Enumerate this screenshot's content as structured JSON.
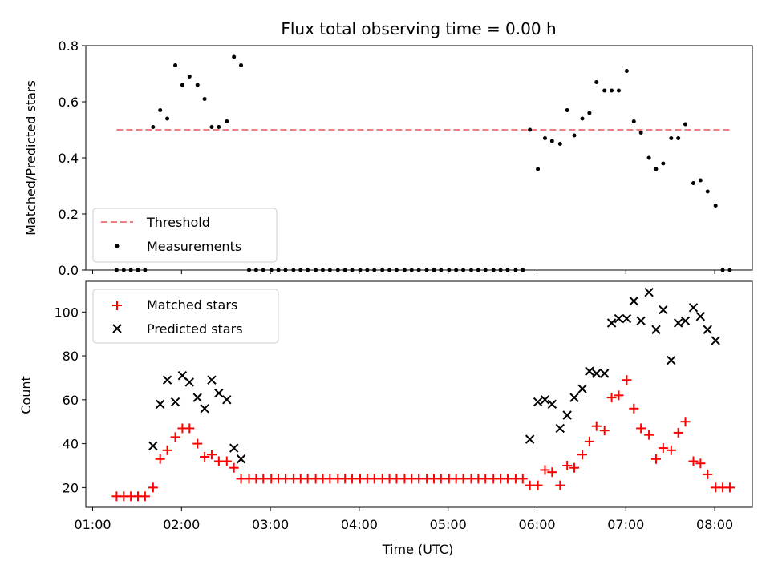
{
  "title": "Flux total observing time = 0.00 h",
  "chart_data": [
    {
      "type": "scatter",
      "ylabel": "Matched/Predicted stars",
      "xlabel": "",
      "ylim": [
        0,
        0.8
      ],
      "y_ticks": [
        "0.0",
        "0.2",
        "0.4",
        "0.6",
        "0.8"
      ],
      "x_ticks": [
        1,
        2,
        3,
        4,
        5,
        6,
        7,
        8
      ],
      "x_range_hours": [
        1.0,
        8.5
      ],
      "legend_position": "lower-left",
      "threshold": {
        "name": "Threshold",
        "value": 0.5,
        "x_start": 1.27,
        "x_end": 8.2,
        "color": "#f08080",
        "style": "dashed"
      },
      "series": [
        {
          "name": "Measurements",
          "color": "#000000",
          "marker": "dot",
          "x": [
            1.27,
            1.35,
            1.43,
            1.51,
            1.59,
            1.68,
            1.76,
            1.84,
            1.93,
            2.01,
            2.09,
            2.18,
            2.26,
            2.34,
            2.42,
            2.51,
            2.59,
            2.67,
            2.76,
            2.84,
            2.92,
            3.01,
            3.09,
            3.17,
            3.26,
            3.34,
            3.42,
            3.51,
            3.59,
            3.67,
            3.76,
            3.84,
            3.92,
            4.01,
            4.09,
            4.17,
            4.26,
            4.34,
            4.42,
            4.51,
            4.59,
            4.67,
            4.76,
            4.84,
            4.92,
            5.01,
            5.09,
            5.17,
            5.26,
            5.34,
            5.42,
            5.51,
            5.59,
            5.67,
            5.76,
            5.84,
            5.92,
            6.01,
            6.09,
            6.17,
            6.26,
            6.34,
            6.42,
            6.51,
            6.59,
            6.67,
            6.76,
            6.84,
            6.92,
            7.01,
            7.09,
            7.17,
            7.26,
            7.34,
            7.42,
            7.51,
            7.59,
            7.67,
            7.76,
            7.84,
            7.92,
            8.01,
            8.09,
            8.17
          ],
          "y": [
            0,
            0,
            0,
            0,
            0,
            0.51,
            0.57,
            0.54,
            0.73,
            0.66,
            0.69,
            0.66,
            0.61,
            0.51,
            0.51,
            0.53,
            0.76,
            0.73,
            0,
            0,
            0,
            0,
            0,
            0,
            0,
            0,
            0,
            0,
            0,
            0,
            0,
            0,
            0,
            0,
            0,
            0,
            0,
            0,
            0,
            0,
            0,
            0,
            0,
            0,
            0,
            0,
            0,
            0,
            0,
            0,
            0,
            0,
            0,
            0,
            0,
            0,
            0.5,
            0.36,
            0.47,
            0.46,
            0.45,
            0.57,
            0.48,
            0.54,
            0.56,
            0.67,
            0.64,
            0.64,
            0.64,
            0.71,
            0.53,
            0.49,
            0.4,
            0.36,
            0.38,
            0.47,
            0.47,
            0.52,
            0.31,
            0.32,
            0.28,
            0.23,
            0,
            0
          ]
        }
      ]
    },
    {
      "type": "scatter",
      "ylabel": "Count",
      "xlabel": "Time (UTC)",
      "ylim": [
        11,
        114
      ],
      "y_ticks": [
        "20",
        "40",
        "60",
        "80",
        "100"
      ],
      "x_ticks": [
        1,
        2,
        3,
        4,
        5,
        6,
        7,
        8
      ],
      "x_tick_labels": [
        "01:00",
        "02:00",
        "03:00",
        "04:00",
        "05:00",
        "06:00",
        "07:00",
        "08:00"
      ],
      "x_range_hours": [
        1.0,
        8.5
      ],
      "legend_position": "upper-left",
      "series": [
        {
          "name": "Matched stars",
          "color": "#ff0000",
          "marker": "plus",
          "x": [
            1.27,
            1.35,
            1.43,
            1.51,
            1.59,
            1.68,
            1.76,
            1.84,
            1.93,
            2.01,
            2.09,
            2.18,
            2.26,
            2.34,
            2.42,
            2.51,
            2.59,
            2.67,
            2.76,
            2.84,
            2.92,
            3.01,
            3.09,
            3.17,
            3.26,
            3.34,
            3.42,
            3.51,
            3.59,
            3.67,
            3.76,
            3.84,
            3.92,
            4.01,
            4.09,
            4.17,
            4.26,
            4.34,
            4.42,
            4.51,
            4.59,
            4.67,
            4.76,
            4.84,
            4.92,
            5.01,
            5.09,
            5.17,
            5.26,
            5.34,
            5.42,
            5.51,
            5.59,
            5.67,
            5.76,
            5.84,
            5.92,
            6.01,
            6.09,
            6.17,
            6.26,
            6.34,
            6.42,
            6.51,
            6.59,
            6.67,
            6.76,
            6.84,
            6.92,
            7.01,
            7.09,
            7.17,
            7.26,
            7.34,
            7.42,
            7.51,
            7.59,
            7.67,
            7.76,
            7.84,
            7.92,
            8.01,
            8.09,
            8.17
          ],
          "y": [
            16,
            16,
            16,
            16,
            16,
            20,
            33,
            37,
            43,
            47,
            47,
            40,
            34,
            35,
            32,
            32,
            29,
            24,
            24,
            24,
            24,
            24,
            24,
            24,
            24,
            24,
            24,
            24,
            24,
            24,
            24,
            24,
            24,
            24,
            24,
            24,
            24,
            24,
            24,
            24,
            24,
            24,
            24,
            24,
            24,
            24,
            24,
            24,
            24,
            24,
            24,
            24,
            24,
            24,
            24,
            24,
            21,
            21,
            28,
            27,
            21,
            30,
            29,
            35,
            41,
            48,
            46,
            61,
            62,
            69,
            56,
            47,
            44,
            33,
            38,
            37,
            45,
            50,
            32,
            31,
            26,
            20,
            20,
            20
          ]
        },
        {
          "name": "Predicted stars",
          "color": "#000000",
          "marker": "x",
          "x": [
            1.68,
            1.76,
            1.84,
            1.93,
            2.01,
            2.09,
            2.18,
            2.26,
            2.34,
            2.42,
            2.51,
            2.59,
            2.67,
            5.92,
            6.01,
            6.09,
            6.17,
            6.26,
            6.34,
            6.42,
            6.51,
            6.59,
            6.67,
            6.76,
            6.84,
            6.92,
            7.01,
            7.09,
            7.17,
            7.26,
            7.34,
            7.42,
            7.51,
            7.59,
            7.67,
            7.76,
            7.84,
            7.92,
            8.01
          ],
          "y": [
            39,
            58,
            69,
            59,
            71,
            68,
            61,
            56,
            69,
            63,
            60,
            38,
            33,
            42,
            59,
            60,
            58,
            47,
            53,
            61,
            65,
            73,
            72,
            72,
            95,
            97,
            97,
            105,
            96,
            109,
            92,
            101,
            78,
            95,
            96,
            102,
            98,
            92,
            87
          ]
        }
      ]
    }
  ]
}
